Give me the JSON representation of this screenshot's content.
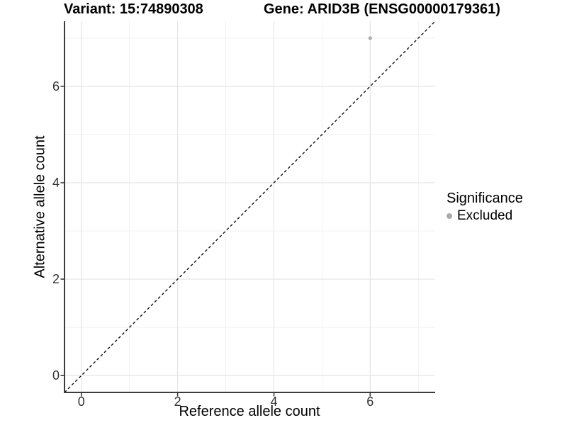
{
  "figure": {
    "title_left": "Variant: 15:74890308",
    "title_right": "Gene: ARID3B (ENSG00000179361)"
  },
  "legend": {
    "title": "Significance",
    "items": [
      {
        "label": "Excluded",
        "color": "#ababab"
      }
    ]
  },
  "chart_data": {
    "type": "scatter",
    "title": "Variant: 15:74890308   Gene: ARID3B (ENSG00000179361)",
    "xlabel": "Reference allele count",
    "ylabel": "Alternative allele count",
    "xlim": [
      -0.35,
      7.35
    ],
    "ylim": [
      -0.35,
      7.35
    ],
    "x_ticks": [
      0,
      2,
      4,
      6
    ],
    "y_ticks": [
      0,
      2,
      4,
      6
    ],
    "x_minor_ticks": [
      1,
      3,
      5,
      7
    ],
    "y_minor_ticks": [
      1,
      3,
      5,
      7
    ],
    "grid": true,
    "legend_position": "right",
    "series": [
      {
        "name": "Excluded",
        "color": "#ababab",
        "points": [
          {
            "x": 6,
            "y": 7
          }
        ]
      }
    ],
    "reference_line": {
      "type": "identity y=x",
      "style": "dashed",
      "color": "#000000"
    }
  },
  "colors": {
    "grid_major": "#e4e4e4",
    "grid_minor": "#f1f1f1",
    "axis_line": "#3c3c3c",
    "tick_label": "#333333"
  }
}
